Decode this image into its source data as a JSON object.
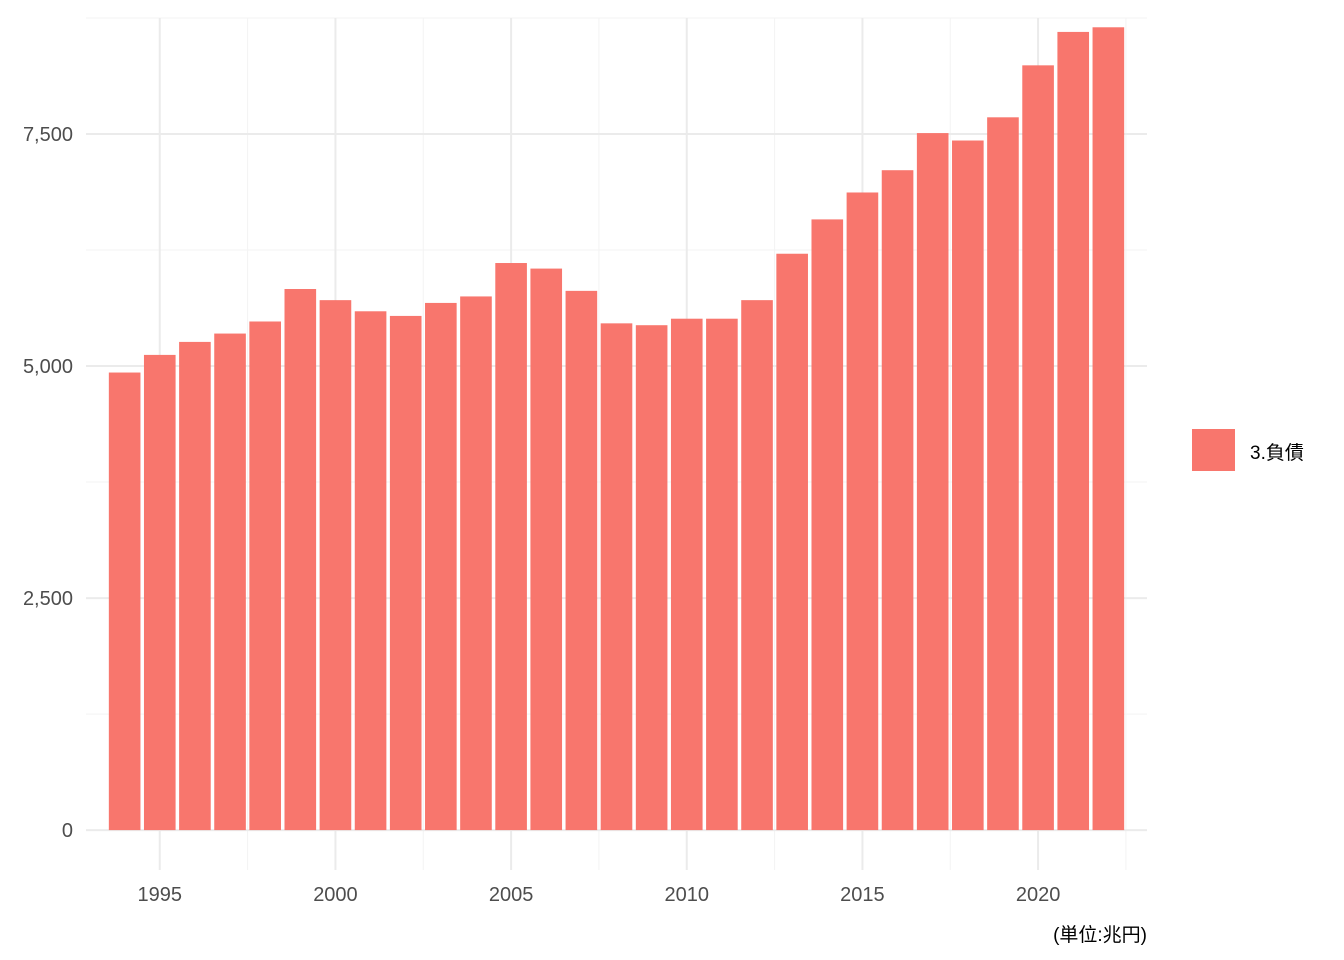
{
  "chart_data": {
    "type": "bar",
    "x": [
      1994,
      1995,
      1996,
      1997,
      1998,
      1999,
      2000,
      2001,
      2002,
      2003,
      2004,
      2005,
      2006,
      2007,
      2008,
      2009,
      2010,
      2011,
      2012,
      2013,
      2014,
      2015,
      2016,
      2017,
      2018,
      2019,
      2020,
      2021,
      2022
    ],
    "series": [
      {
        "name": "3.負債",
        "color": "#F8766D",
        "values": [
          4930,
          5120,
          5260,
          5350,
          5480,
          5830,
          5710,
          5590,
          5540,
          5680,
          5750,
          6110,
          6050,
          5810,
          5460,
          5440,
          5510,
          5510,
          5710,
          6210,
          6580,
          6870,
          7110,
          7510,
          7430,
          7680,
          8240,
          8600,
          8650
        ]
      }
    ],
    "title": "",
    "xlabel": "",
    "ylabel": "",
    "ylim": [
      -430,
      8750
    ],
    "xlim": [
      1992.9,
      2023.1
    ],
    "y_ticks": [
      0,
      2500,
      5000,
      7500
    ],
    "y_tick_labels": [
      "0",
      "2,500",
      "5,000",
      "7,500"
    ],
    "x_ticks": [
      1995,
      2000,
      2005,
      2010,
      2015,
      2020
    ],
    "x_tick_labels": [
      "1995",
      "2000",
      "2005",
      "2010",
      "2015",
      "2020"
    ],
    "grid": true,
    "legend_position": "right",
    "caption": "(単位:兆円)",
    "colors": {
      "bar": "#F8766D",
      "grid_major": "#EBEBEB",
      "grid_minor": "#F3F3F3",
      "tick_text": "#4D4D4D"
    }
  }
}
